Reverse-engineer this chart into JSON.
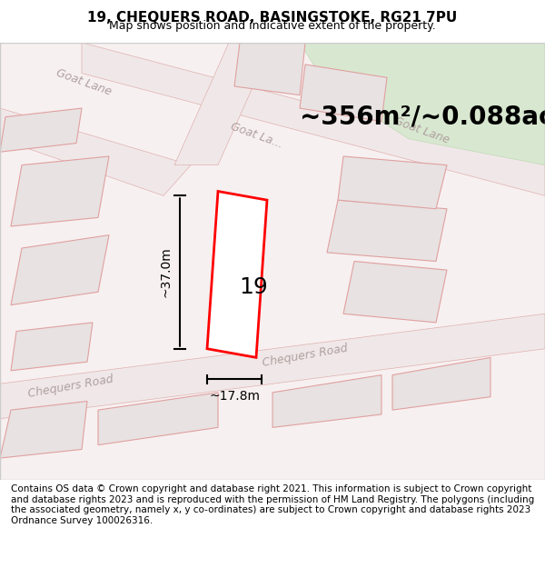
{
  "title": "19, CHEQUERS ROAD, BASINGSTOKE, RG21 7PU",
  "subtitle": "Map shows position and indicative extent of the property.",
  "area_text": "~356m²/~0.088ac.",
  "dim_height": "~37.0m",
  "dim_width": "~17.8m",
  "property_number": "19",
  "footer": "Contains OS data © Crown copyright and database right 2021. This information is subject to Crown copyright and database rights 2023 and is reproduced with the permission of HM Land Registry. The polygons (including the associated geometry, namely x, y co-ordinates) are subject to Crown copyright and database rights 2023 Ordnance Survey 100026316.",
  "bg_color": "#f5f0f0",
  "map_bg": "#f7f2f2",
  "road_color": "#ffffff",
  "building_fill": "#e8e0e0",
  "building_outline": "#e0a0a0",
  "highlight_fill": "#ffffff",
  "highlight_outline": "#ff0000",
  "road_label_color": "#b0a0a0",
  "green_area": "#dde8d8",
  "title_fontsize": 11,
  "subtitle_fontsize": 9,
  "area_fontsize": 20,
  "dim_fontsize": 10,
  "number_fontsize": 18,
  "footer_fontsize": 7.5
}
